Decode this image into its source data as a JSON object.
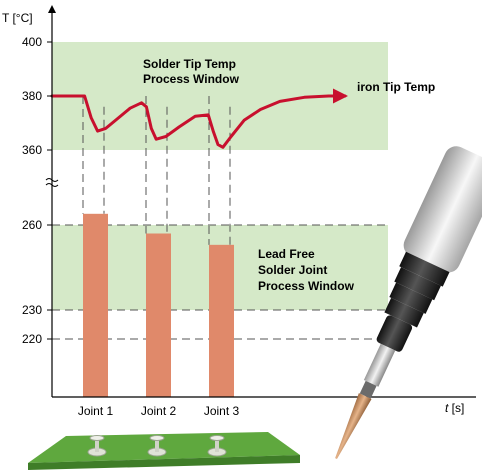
{
  "chart_data": {
    "type": "bar",
    "ylabel": "T [°C]",
    "xlabel_italic": "t",
    "xlabel_unit": " [s]",
    "y_ticks_upper": [
      400,
      380,
      360
    ],
    "y_ticks_lower": [
      260,
      230,
      220
    ],
    "upper_range": [
      360,
      400
    ],
    "lower_range": [
      200,
      265
    ],
    "categories": [
      "Joint 1",
      "Joint 2",
      "Joint 3"
    ],
    "values": [
      264,
      257,
      253
    ],
    "bands": [
      {
        "label_lines": [
          "Solder Tip Temp",
          "Process Window"
        ],
        "from": 360,
        "to": 400
      },
      {
        "label_lines": [
          "Lead Free",
          "Solder Joint",
          "Process Window"
        ],
        "from": 230,
        "to": 260
      }
    ],
    "dashed_lines": [
      260,
      230,
      220
    ],
    "tip_curve_label": "iron Tip Temp",
    "tip_curve": [
      [
        0,
        380
      ],
      [
        18,
        380
      ],
      [
        20,
        380
      ],
      [
        24,
        372
      ],
      [
        28,
        367
      ],
      [
        33,
        368
      ],
      [
        40,
        371.5
      ],
      [
        48,
        375.5
      ],
      [
        55,
        377.5
      ],
      [
        58,
        376
      ],
      [
        61,
        368
      ],
      [
        64,
        364
      ],
      [
        70,
        365
      ],
      [
        78,
        368.5
      ],
      [
        88,
        372.5
      ],
      [
        96,
        373
      ],
      [
        99,
        367
      ],
      [
        102,
        362
      ],
      [
        105,
        361
      ],
      [
        110,
        365
      ],
      [
        118,
        371
      ],
      [
        128,
        375
      ],
      [
        140,
        378
      ],
      [
        155,
        379.5
      ],
      [
        170,
        380
      ],
      [
        180,
        380
      ]
    ],
    "tip_drop_times": [
      20,
      58,
      96
    ],
    "colors": {
      "band": "#d5e9c8",
      "bar": "#e0896a",
      "curve": "#c8102e",
      "axis": "#000000",
      "dash": "#555555",
      "board": "#6fb84a"
    }
  }
}
